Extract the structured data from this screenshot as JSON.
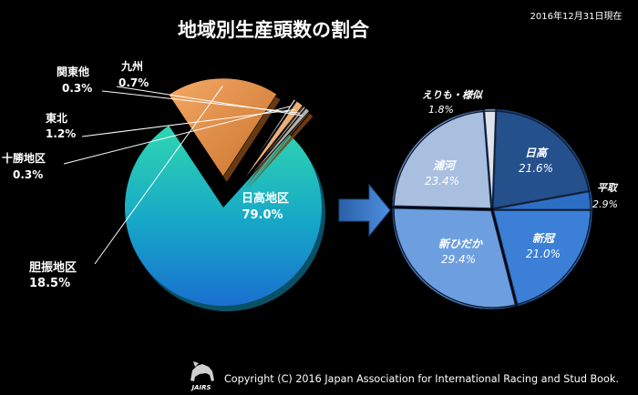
{
  "header": {
    "title": "地域別生産頭数の割合",
    "date": "2016年12月31日現在"
  },
  "footer": {
    "logo_text": "JAIRS",
    "copyright": "Copyright (C) 2016 Japan Association for International Racing and Stud Book."
  },
  "colors": {
    "background": "#000000",
    "hidaka": "#1bb3c9",
    "iburi": "#e08a3c",
    "arrow": "#3a78c8"
  },
  "chart_data": [
    {
      "type": "pie",
      "title": "地域別生産頭数の割合",
      "unit": "%",
      "slices": [
        {
          "name": "日高地区",
          "value": 79.0,
          "label": "79.0%",
          "color": "#1bb3c9"
        },
        {
          "name": "胆振地区",
          "value": 18.5,
          "label": "18.5%",
          "color": "#e08a3c"
        },
        {
          "name": "十勝地区",
          "value": 0.3,
          "label": "0.3%",
          "color": "#d8d8d8"
        },
        {
          "name": "東北",
          "value": 1.2,
          "label": "1.2%",
          "color": "#e9b07a"
        },
        {
          "name": "関東他",
          "value": 0.3,
          "label": "0.3%",
          "color": "#c9c9c9"
        },
        {
          "name": "九州",
          "value": 0.7,
          "label": "0.7%",
          "color": "#b0b0b0"
        }
      ]
    },
    {
      "type": "pie",
      "title": "",
      "unit": "%",
      "slices": [
        {
          "name": "日高",
          "value": 21.6,
          "label": "21.6%",
          "color": "#24508c"
        },
        {
          "name": "平取",
          "value": 2.9,
          "label": "2.9%",
          "color": "#2d6fc4"
        },
        {
          "name": "新冠",
          "value": 21.0,
          "label": "21.0%",
          "color": "#3b7fd6"
        },
        {
          "name": "新ひだか",
          "value": 29.4,
          "label": "29.4%",
          "color": "#6d9fe0"
        },
        {
          "name": "浦河",
          "value": 23.4,
          "label": "23.4%",
          "color": "#a9bfe0"
        },
        {
          "name": "えりも・様似",
          "value": 1.8,
          "label": "1.8%",
          "color": "#dfe4ea"
        }
      ]
    }
  ]
}
